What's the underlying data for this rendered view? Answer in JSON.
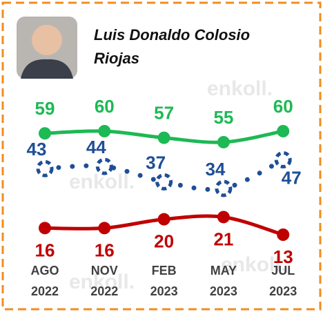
{
  "chart_data": {
    "type": "line",
    "title": "Luis Donaldo Colosio Riojas",
    "watermark": "enkoll.",
    "categories": [
      [
        "AGO",
        "2022"
      ],
      [
        "NOV",
        "2022"
      ],
      [
        "FEB",
        "2023"
      ],
      [
        "MAY",
        "2023"
      ],
      [
        "JUL",
        "2023"
      ]
    ],
    "series": [
      {
        "color": "#1db954",
        "values": [
          59,
          60,
          57,
          55,
          60
        ]
      },
      {
        "color": "#1f4e96",
        "values": [
          43,
          44,
          37,
          34,
          47
        ]
      },
      {
        "color": "#c00000",
        "values": [
          16,
          16,
          20,
          21,
          13
        ]
      }
    ]
  }
}
